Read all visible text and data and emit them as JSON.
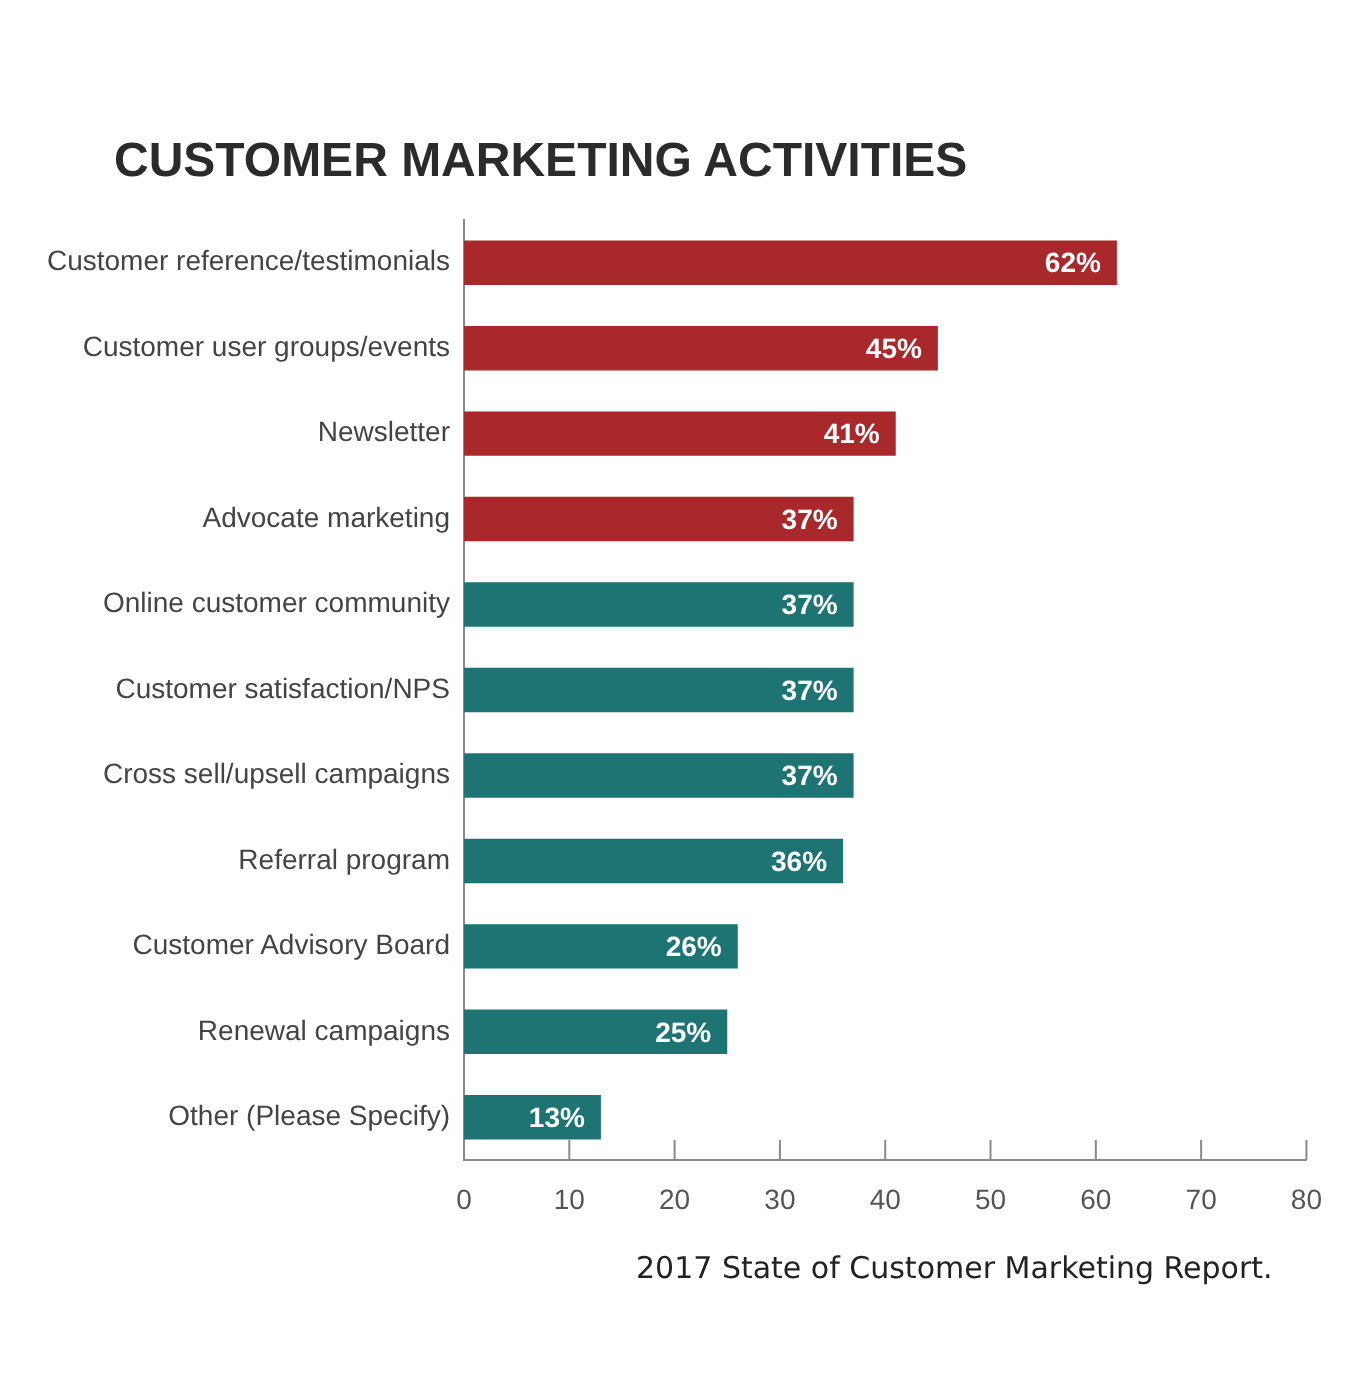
{
  "chart_data": {
    "type": "bar",
    "orientation": "horizontal",
    "title": "CUSTOMER MARKETING ACTIVITIES",
    "categories": [
      "Customer reference/testimonials",
      "Customer user groups/events",
      "Newsletter",
      "Advocate marketing",
      "Online customer community",
      "Customer satisfaction/NPS",
      "Cross sell/upsell campaigns",
      "Referral program",
      "Customer Advisory Board",
      "Renewal campaigns",
      "Other (Please Specify)"
    ],
    "values": [
      62,
      45,
      41,
      37,
      37,
      37,
      37,
      36,
      26,
      25,
      13
    ],
    "colors": [
      "#a8282b",
      "#a8282b",
      "#a8282b",
      "#a8282b",
      "#1d7473",
      "#1d7473",
      "#1d7473",
      "#1d7473",
      "#1d7473",
      "#1d7473",
      "#1d7473"
    ],
    "value_labels": [
      "62%",
      "45%",
      "41%",
      "37%",
      "37%",
      "37%",
      "37%",
      "36%",
      "26%",
      "25%",
      "13%"
    ],
    "xlim": [
      0,
      80
    ],
    "xticks": [
      0,
      10,
      20,
      30,
      40,
      50,
      60,
      70,
      80
    ],
    "grid": false,
    "legend": false,
    "annotations": [
      "2017 State of Customer Marketing Report."
    ]
  }
}
